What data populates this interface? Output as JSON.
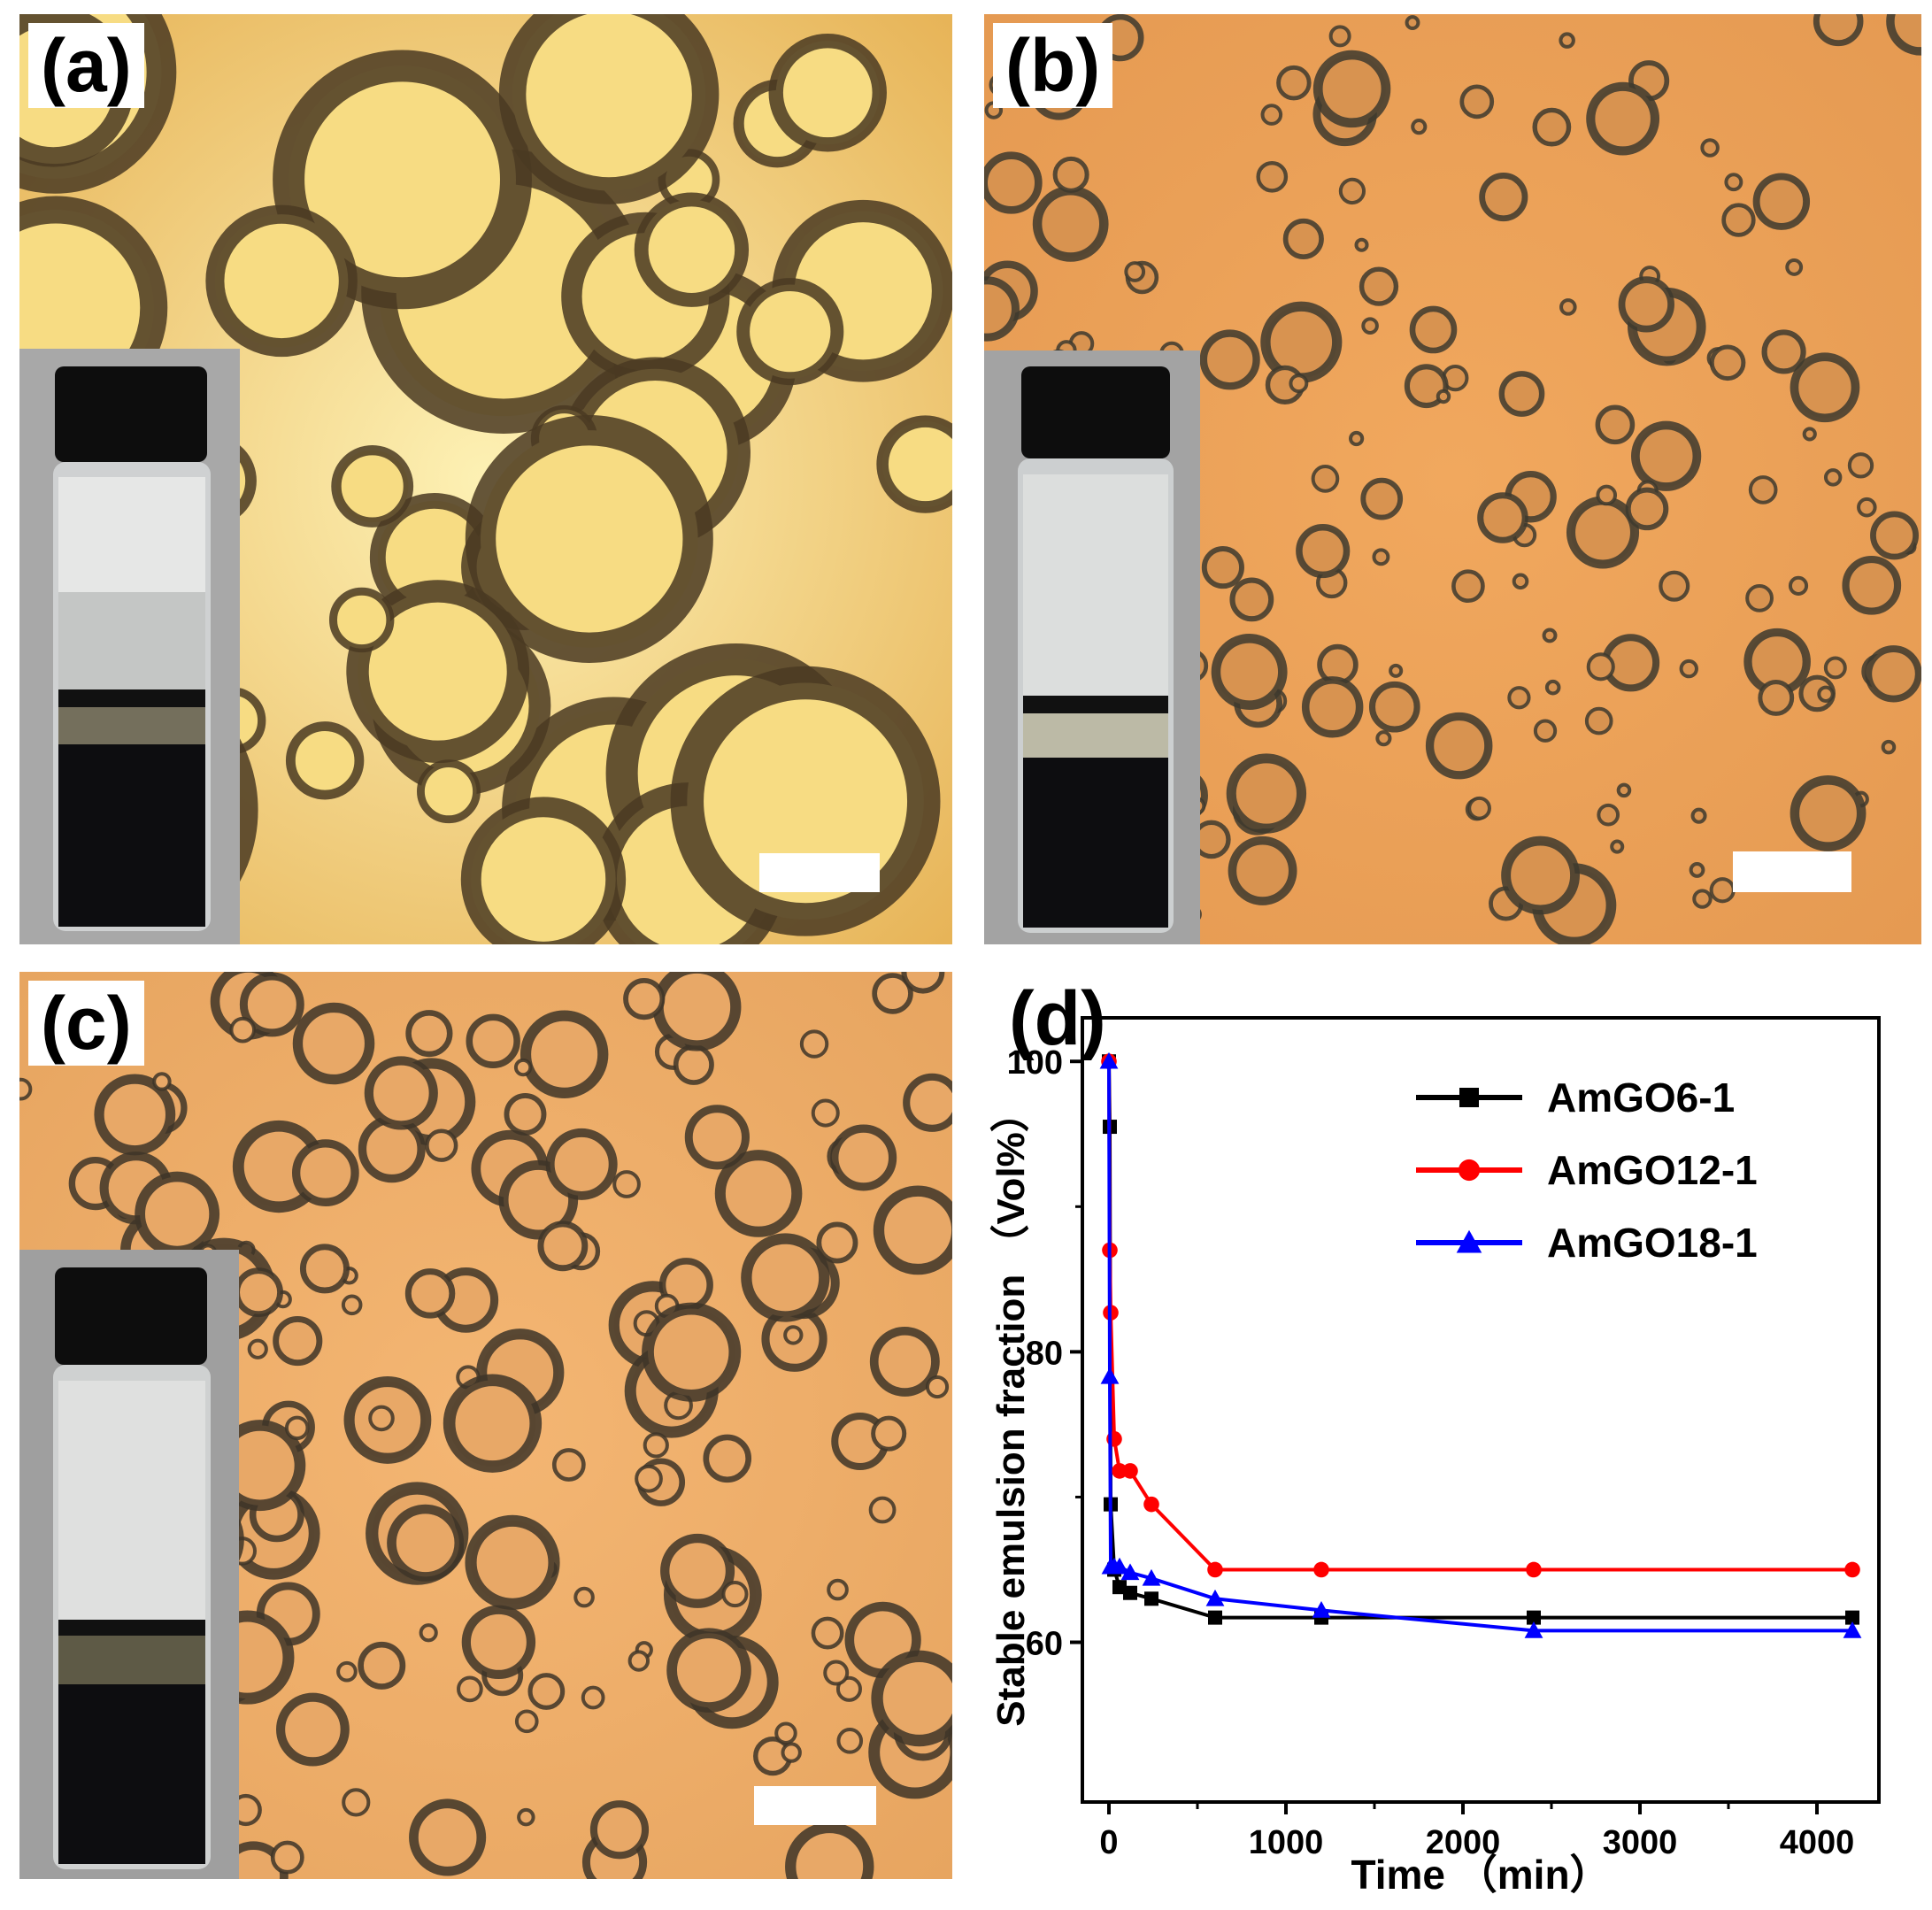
{
  "panels": {
    "a": {
      "label": "(a)",
      "bg_light": "#fdf1b4",
      "bg_dark": "#e7b458",
      "droplet_rim": "#4a3a22"
    },
    "b": {
      "label": "(b)",
      "bg_light": "#f1a85e",
      "bg_dark": "#e59a52",
      "droplet_rim": "#3e3a2e"
    },
    "c": {
      "label": "(c)",
      "bg_light": "#f4b673",
      "bg_dark": "#e7a560",
      "droplet_rim": "#3e3528"
    },
    "d": {
      "label": "(d)"
    }
  },
  "chart_data": {
    "type": "line",
    "xlabel": "Time （min）",
    "ylabel": "Stable emulsion fraction （Vol%）",
    "xlim": [
      -150,
      4350
    ],
    "ylim": [
      49,
      103
    ],
    "xticks": [
      0,
      1000,
      2000,
      3000,
      4000
    ],
    "yticks": [
      60,
      80,
      100
    ],
    "legend_position": "top-right",
    "series": [
      {
        "name": "AmGO6-1",
        "color": "#000000",
        "marker": "square",
        "x": [
          0,
          5,
          10,
          30,
          60,
          120,
          240,
          600,
          1200,
          2400,
          4200
        ],
        "y": [
          100,
          95.5,
          69.5,
          65.0,
          63.8,
          63.4,
          63.0,
          61.7,
          61.7,
          61.7,
          61.7
        ]
      },
      {
        "name": "AmGO12-1",
        "color": "#ff0000",
        "marker": "circle",
        "x": [
          0,
          5,
          10,
          30,
          60,
          120,
          240,
          600,
          1200,
          2400,
          4200
        ],
        "y": [
          100,
          87.0,
          82.7,
          74.0,
          71.8,
          71.8,
          69.5,
          65.0,
          65.0,
          65.0,
          65.0
        ]
      },
      {
        "name": "AmGO18-1",
        "color": "#0000ff",
        "marker": "triangle",
        "x": [
          0,
          5,
          10,
          30,
          60,
          120,
          240,
          600,
          1200,
          2400,
          4200
        ],
        "y": [
          100,
          78.3,
          65.2,
          65.2,
          65.2,
          64.8,
          64.4,
          63.0,
          62.2,
          60.8,
          60.8
        ]
      }
    ]
  }
}
